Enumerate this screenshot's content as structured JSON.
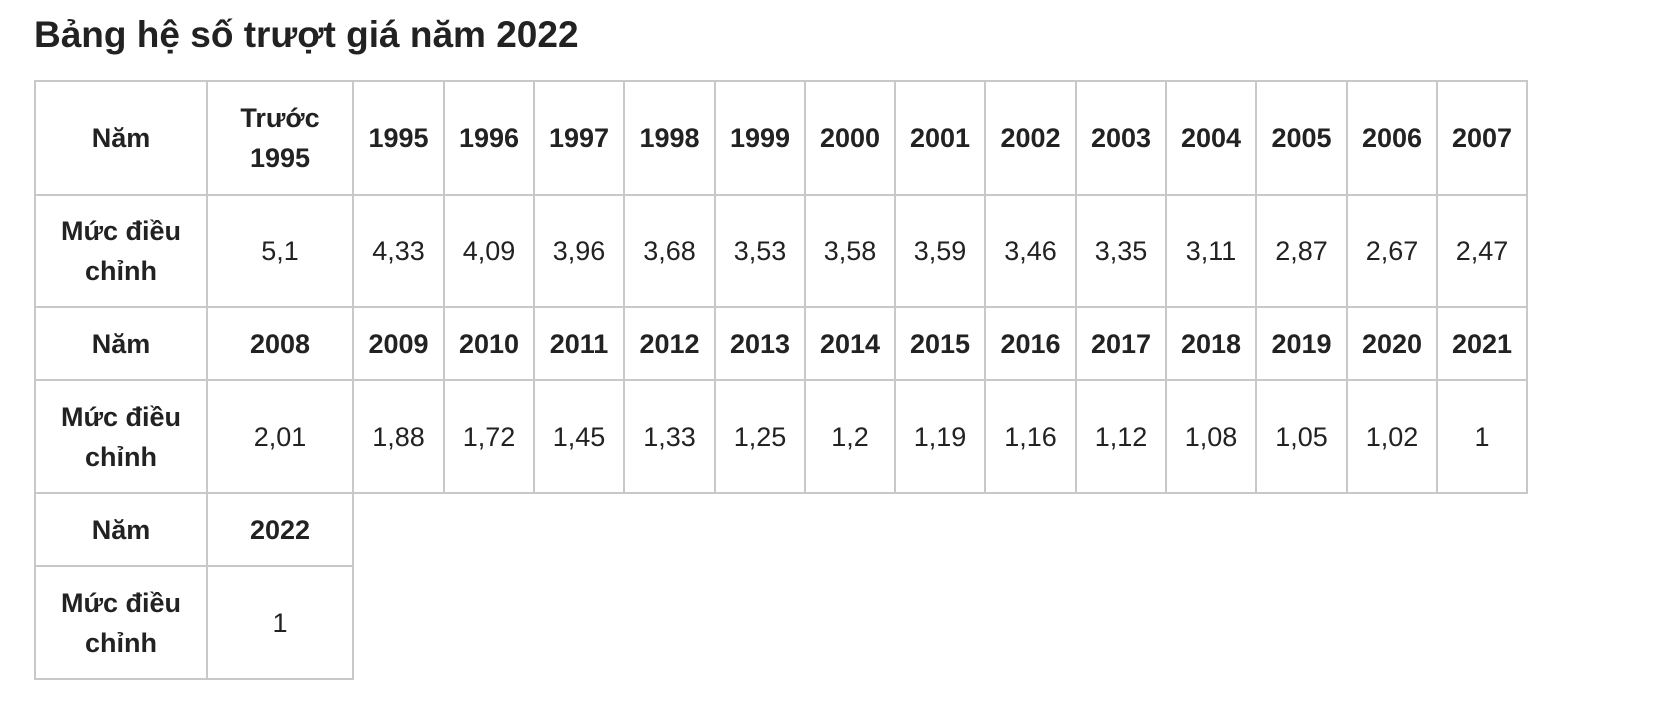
{
  "title": "Bảng hệ số trượt giá năm 2022",
  "table": {
    "row_label_year": "Năm",
    "row_label_coef": "Mức điều chỉnh",
    "blocks": [
      {
        "years": [
          "Trước 1995",
          "1995",
          "1996",
          "1997",
          "1998",
          "1999",
          "2000",
          "2001",
          "2002",
          "2003",
          "2004",
          "2005",
          "2006",
          "2007"
        ],
        "values": [
          "5,1",
          "4,33",
          "4,09",
          "3,96",
          "3,68",
          "3,53",
          "3,58",
          "3,59",
          "3,46",
          "3,35",
          "3,11",
          "2,87",
          "2,67",
          "2,47"
        ]
      },
      {
        "years": [
          "2008",
          "2009",
          "2010",
          "2011",
          "2012",
          "2013",
          "2014",
          "2015",
          "2016",
          "2017",
          "2018",
          "2019",
          "2020",
          "2021"
        ],
        "values": [
          "2,01",
          "1,88",
          "1,72",
          "1,45",
          "1,33",
          "1,25",
          "1,2",
          "1,19",
          "1,16",
          "1,12",
          "1,08",
          "1,05",
          "1,02",
          "1"
        ]
      },
      {
        "years": [
          "2022"
        ],
        "values": [
          "1"
        ]
      }
    ]
  }
}
